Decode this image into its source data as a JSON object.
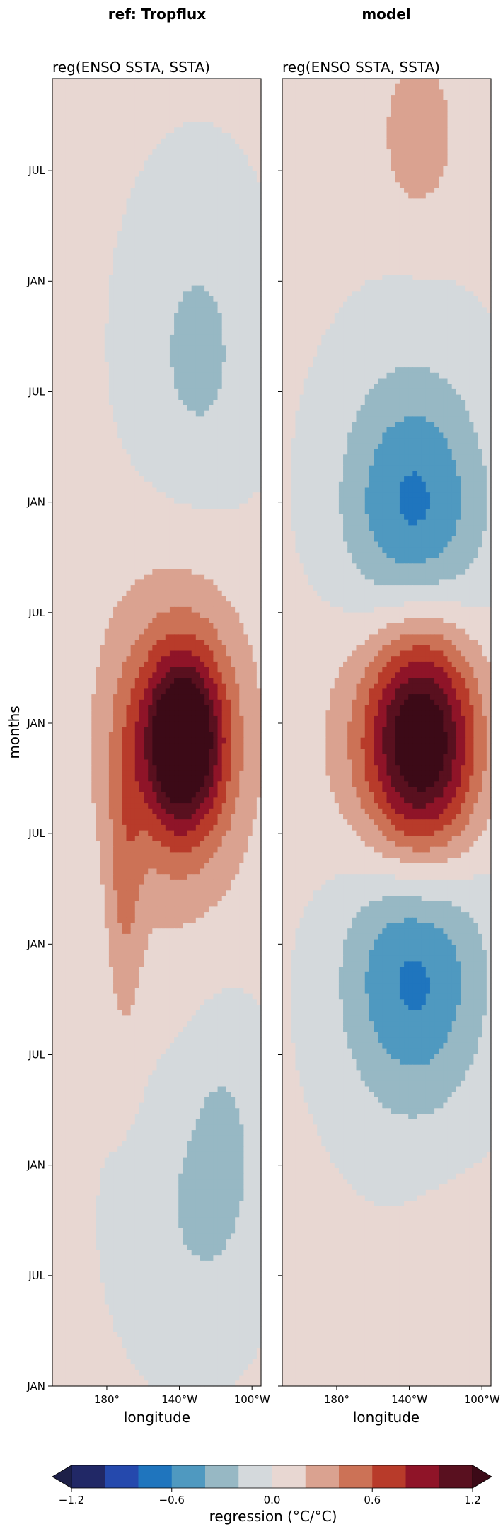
{
  "chart_data": [
    {
      "type": "heatmap",
      "title": "ref: Tropflux",
      "subtitle": "reg(ENSO SSTA, SSTA)",
      "xlabel": "longitude",
      "ylabel": "months",
      "xlim": [
        150,
        265
      ],
      "ylim": [
        0,
        71
      ],
      "xticks": [
        {
          "value": 180,
          "label": "180°"
        },
        {
          "value": 220,
          "label": "140°W"
        },
        {
          "value": 260,
          "label": "100°W"
        }
      ],
      "yticks": [
        {
          "value": 0,
          "label": "JAN"
        },
        {
          "value": 6,
          "label": "JUL"
        },
        {
          "value": 12,
          "label": "JAN"
        },
        {
          "value": 18,
          "label": "JUL"
        },
        {
          "value": 24,
          "label": "JAN"
        },
        {
          "value": 30,
          "label": "JUL"
        },
        {
          "value": 36,
          "label": "JAN"
        },
        {
          "value": 42,
          "label": "JUL"
        },
        {
          "value": 48,
          "label": "JAN"
        },
        {
          "value": 54,
          "label": "JUL"
        },
        {
          "value": 60,
          "label": "JAN"
        },
        {
          "value": 66,
          "label": "JUL"
        }
      ],
      "features": [
        {
          "lon": 222,
          "month": 35,
          "slon": 15,
          "smon": 3.2,
          "amp": 1.25
        },
        {
          "lon": 218,
          "month": 35,
          "slon": 30,
          "smon": 6.5,
          "amp": 0.55
        },
        {
          "lon": 190,
          "month": 27,
          "slon": 7,
          "smon": 6,
          "amp": 0.3
        },
        {
          "lon": 230,
          "month": 56,
          "slon": 24,
          "smon": 6,
          "amp": -0.28
        },
        {
          "lon": 245,
          "month": 14,
          "slon": 16,
          "smon": 5,
          "amp": -0.2
        },
        {
          "lon": 225,
          "month": 9,
          "slon": 26,
          "smon": 5,
          "amp": -0.2
        }
      ]
    },
    {
      "type": "heatmap",
      "title": "model",
      "subtitle": "reg(ENSO SSTA, SSTA)",
      "xlabel": "longitude",
      "ylabel": "",
      "xlim": [
        150,
        265
      ],
      "ylim": [
        0,
        71
      ],
      "xticks": [
        {
          "value": 180,
          "label": "180°"
        },
        {
          "value": 220,
          "label": "140°W"
        },
        {
          "value": 260,
          "label": "100°W"
        }
      ],
      "yticks": [],
      "features": [
        {
          "lon": 227,
          "month": 35,
          "slon": 21,
          "smon": 4.6,
          "amp": 1.25
        },
        {
          "lon": 215,
          "month": 35,
          "slon": 32,
          "smon": 6.8,
          "amp": 0.35
        },
        {
          "lon": 222,
          "month": 47,
          "slon": 28,
          "smon": 5.5,
          "amp": -0.75
        },
        {
          "lon": 222,
          "month": 23,
          "slon": 28,
          "smon": 5.5,
          "amp": -0.75
        },
        {
          "lon": 225,
          "month": 68,
          "slon": 14,
          "smon": 3,
          "amp": 0.35
        },
        {
          "lon": 250,
          "month": 4,
          "slon": 20,
          "smon": 4,
          "amp": 0.15
        }
      ]
    }
  ],
  "colorbar": {
    "label": "regression (°C/°C)",
    "levels": [
      -1.2,
      -1.0,
      -0.8,
      -0.6,
      -0.4,
      -0.2,
      0.0,
      0.2,
      0.4,
      0.6,
      0.8,
      1.0,
      1.2
    ],
    "ticks": [
      {
        "value": -1.2,
        "label": "−1.2"
      },
      {
        "value": -0.6,
        "label": "−0.6"
      },
      {
        "value": 0.0,
        "label": "0.0"
      },
      {
        "value": 0.6,
        "label": "0.6"
      },
      {
        "value": 1.2,
        "label": "1.2"
      }
    ],
    "under_color": "#1d2048",
    "over_color": "#3c0a17",
    "colors": [
      "#212866",
      "#2549ad",
      "#1f75be",
      "#4f99c0",
      "#97b8c4",
      "#d4d9dc",
      "#e8d7d2",
      "#daa290",
      "#cc7256",
      "#b83b2a",
      "#8f1428",
      "#59101f"
    ]
  }
}
